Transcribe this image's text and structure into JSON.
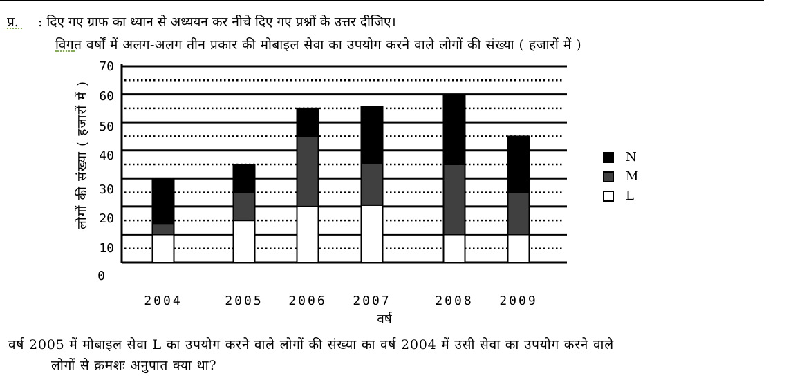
{
  "question_number": "प्र.",
  "instruction": ": दिए गए ग्राफ का ध्यान से अध्ययन कर नीचे दिए गए प्रश्नों के उत्तर दीजिए।",
  "question": {
    "line1": "वर्ष 2005 में मोबाइल सेवा L का उपयोग करने वाले लोगों की संख्या का वर्ष 2004 में उसी सेवा का उपयोग करने वाले",
    "line2": "लोगों से क्रमशः अनुपात क्या था?"
  },
  "chart_data": {
    "type": "bar",
    "stacked": true,
    "title": "विगत वर्षों में अलग-अलग तीन प्रकार की मोबाइल सेवा का उपयोग करने वाले लोगों की संख्या ( हजारों में )",
    "xlabel": "वर्ष",
    "ylabel": "लोगों की संख्या ( हजारों में )",
    "ylim": [
      0,
      70
    ],
    "yticks": [
      "0",
      "10",
      "20",
      "30",
      "40",
      "50",
      "60",
      "70"
    ],
    "categories": [
      "2004",
      "2005",
      "2006",
      "2007",
      "2008",
      "2009"
    ],
    "series": [
      {
        "name": "L",
        "values": [
          10,
          15,
          20,
          20.5,
          10,
          10
        ],
        "color": "#ffffff"
      },
      {
        "name": "M",
        "values": [
          4,
          10,
          25,
          15,
          25,
          15
        ],
        "color": "#404040"
      },
      {
        "name": "N",
        "values": [
          16,
          10,
          10,
          20,
          25,
          20
        ],
        "color": "#000000"
      }
    ],
    "legend_order": [
      "N",
      "M",
      "L"
    ],
    "legend_position": "right",
    "grid": true
  }
}
